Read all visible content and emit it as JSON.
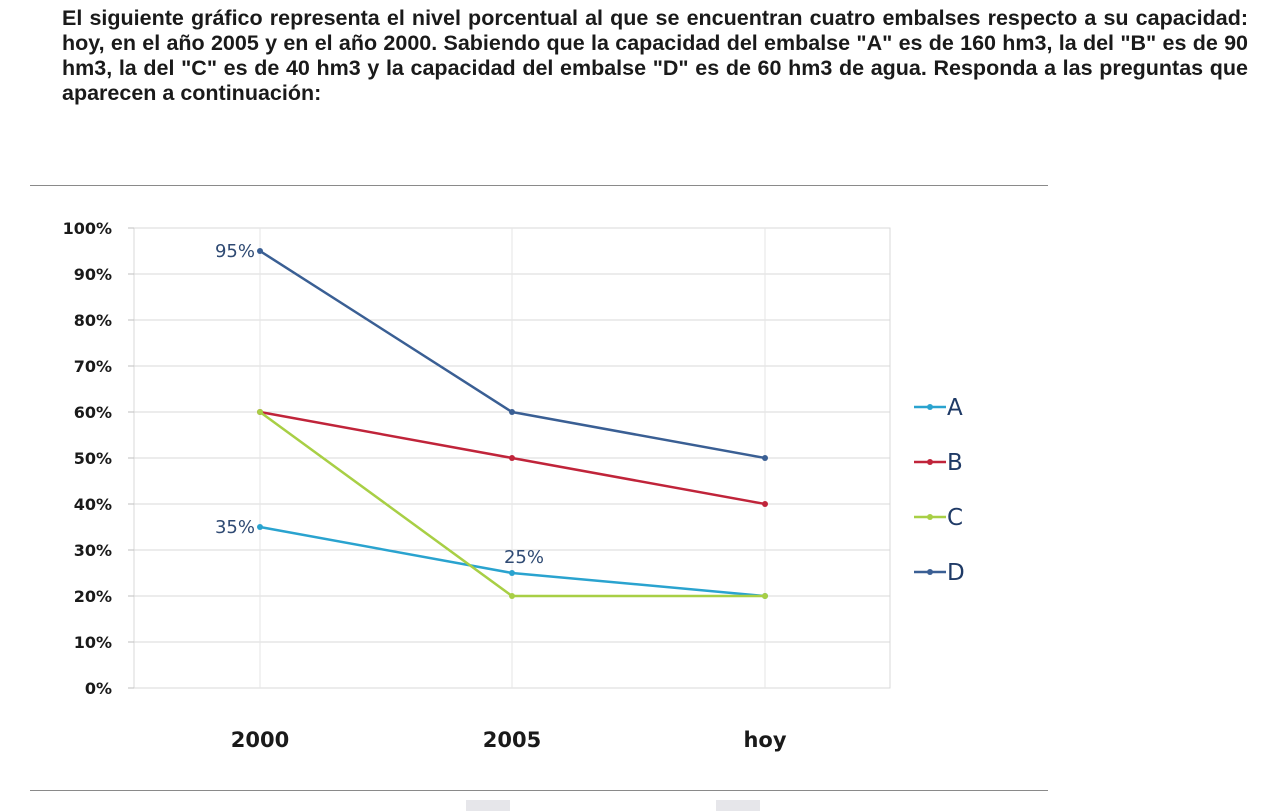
{
  "intro": "El siguiente gráfico representa el nivel porcentual al que se encuentran cuatro embalses respecto a su capacidad: hoy, en el año 2005 y en el año 2000. Sabiendo que la capacidad del embalse \"A\" es de 160 hm3, la del \"B\" es de 90 hm3, la del \"C\" es de 40 hm3 y la capacidad del embalse \"D\" es de 60 hm3 de agua. Responda a las preguntas que aparecen a continuación:",
  "chart_data": {
    "type": "line",
    "title": "",
    "xlabel": "",
    "ylabel": "",
    "categories": [
      "2000",
      "2005",
      "hoy"
    ],
    "ylim": [
      0,
      100
    ],
    "yticks": [
      0,
      10,
      20,
      30,
      40,
      50,
      60,
      70,
      80,
      90,
      100
    ],
    "ytick_suffix": "%",
    "grid": true,
    "legend_position": "right",
    "series": [
      {
        "name": "A",
        "values": [
          35,
          25,
          20
        ],
        "color": "#2aa3cf"
      },
      {
        "name": "B",
        "values": [
          60,
          50,
          40
        ],
        "color": "#c0243a"
      },
      {
        "name": "C",
        "values": [
          60,
          20,
          20
        ],
        "color": "#a8cf45"
      },
      {
        "name": "D",
        "values": [
          95,
          60,
          50
        ],
        "color": "#3a5f94"
      }
    ],
    "annotations": [
      {
        "text": "95%",
        "series": "D",
        "category": "2000"
      },
      {
        "text": "35%",
        "series": "A",
        "category": "2000"
      },
      {
        "text": "25%",
        "series": "A",
        "category": "2005"
      }
    ]
  }
}
